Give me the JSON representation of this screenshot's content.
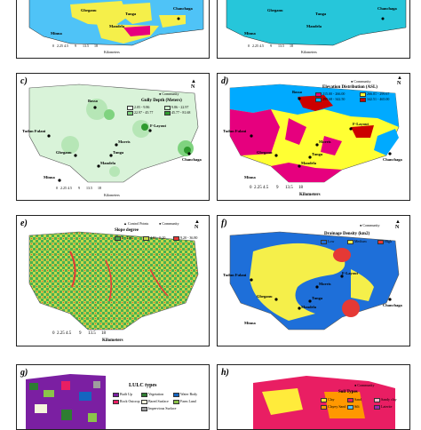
{
  "panels": {
    "a": {
      "towns": {
        "gbegamu": "Gbeganu",
        "tunga": "Tunga",
        "mandela": "Mandela",
        "chanchaga": "Chanchaga",
        "minna": "Minna"
      },
      "scale": [
        "0",
        "2.25",
        "4.5",
        "9",
        "13.5",
        "18"
      ],
      "km": "Kilometers"
    },
    "b": {
      "towns": {
        "gbegamu": "Gbeganu",
        "tunga": "Tunga",
        "mandela": "Mandela",
        "chanchaga": "Chanchaga",
        "minna": "Minna"
      },
      "scale": [
        "0",
        "2.25",
        "4.5",
        "9",
        "13.5",
        "18"
      ],
      "km": "Kilometers"
    },
    "c": {
      "label": "c)",
      "title": "Gully Depth (Meters)",
      "community": "Community",
      "north": "N",
      "legend": [
        "2.05 - 9.86",
        "9.86 - 22.97",
        "22.97 - 45.77",
        "45.77 - 81.68"
      ],
      "towns": {
        "bosso": "Bosso",
        "tudun": "Tudun Fulani",
        "flayout": "F-Layout",
        "morris": "Morris",
        "tunga": "Tunga",
        "gbegamu": "Gbeganu",
        "mandela": "Mandela",
        "chanchaga": "Chanchaga",
        "minna": "Minna"
      },
      "scale": [
        "0",
        "2.25",
        "4.5",
        "9",
        "13.5",
        "18"
      ],
      "km": "Kilometers"
    },
    "d": {
      "label": "d)",
      "title": "Elevation Distribution (ASL)",
      "community": "Community",
      "north": "N",
      "legend": [
        "215.00 - 266.00",
        "266.01 - 299.67",
        "299.68 - 342.50",
        "342.51 - 465.00"
      ],
      "towns": {
        "bosso": "Bosso",
        "flayout": "F-Layout",
        "tudun": "Tudun Fulani",
        "morris": "Morris",
        "tunga": "Tunga",
        "gbegamu": "Gbeganu",
        "mandela": "Mandela",
        "chanchaga": "Chanchaga",
        "minna": "Minna"
      },
      "scale": [
        "0",
        "2.25",
        "4.5",
        "9",
        "13.5",
        "18"
      ],
      "km": "Kilometers"
    },
    "e": {
      "label": "e)",
      "title": "Slope degree",
      "control": "Control Points",
      "community": "Community",
      "north": "N",
      "legend": [
        "0 - 4.80",
        "4.81 - 9.20",
        "9.20 - 36.80"
      ],
      "scale": [
        "0",
        "2.25",
        "4.5",
        "9",
        "13.5",
        "18"
      ],
      "km": "Kilometers"
    },
    "f": {
      "label": "f)",
      "title": "Drainage Density (km2)",
      "community": "Community",
      "north": "N",
      "legend": [
        "Low",
        "Medium",
        "High"
      ],
      "towns": {
        "tudun": "Tudun Fulani",
        "morris": "Morris",
        "flayout": "F-Layout",
        "tunga": "Tunga",
        "gbegamu": "Gbeganu",
        "mandela": "Mandela",
        "chanchaga": "Chanchaga",
        "minna": "Minna"
      }
    },
    "g": {
      "label": "g)",
      "title": "LULC types",
      "legend": [
        "Built Up",
        "Vegetation",
        "Water Body",
        "Rock Outcrop",
        "Bared Surface",
        "Farm Land",
        "Impervious Surface"
      ]
    },
    "h": {
      "label": "h)",
      "title": "Soil Types",
      "community": "Community",
      "legend": [
        "Clay",
        "Sand",
        "Sandy clay",
        "Clayey Sand",
        "Silt",
        "Laterite"
      ]
    }
  },
  "colors": {
    "c": [
      "#e6f5e6",
      "#c8ecc8",
      "#7fd37f",
      "#2e9a2e"
    ],
    "d": [
      "#e6007e",
      "#ffff33",
      "#00aaff",
      "#cc0000"
    ],
    "e": [
      "#4caf50",
      "#c8d84a",
      "#e53935"
    ],
    "f": [
      "#1e6fd9",
      "#f5ef4a",
      "#e53935"
    ],
    "g": [
      "#7b1fa2",
      "#2e7d32",
      "#1565c0",
      "#e91e63",
      "#f5f5dc",
      "#8bc34a",
      "#9e9e9e"
    ],
    "h": [
      "#ffeb3b",
      "#e91e63",
      "#f8bbd0",
      "#ff9800",
      "#4fc3f7",
      "#9c27b0"
    ]
  }
}
